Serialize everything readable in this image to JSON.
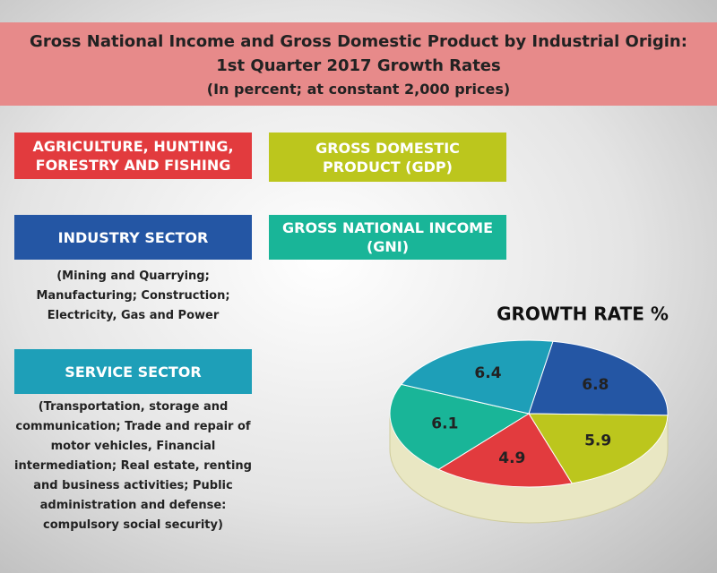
{
  "chart_data": {
    "type": "pie",
    "title": "Gross National Income and Gross Domestic Product by Industrial Origin: 1st Quarter 2017 Growth Rates",
    "subtitle": "(In percent; at constant 2,000 prices)",
    "chart_label": "GROWTH RATE %",
    "categories": [
      "INDUSTRY SECTOR",
      "GROSS DOMESTIC PRODUCT (GDP)",
      "AGRICULTURE, HUNTING, FORESTRY AND FISHING",
      "GROSS NATIONAL INCOME (GNI)",
      "SERVICE SECTOR"
    ],
    "values": [
      6.8,
      5.9,
      4.9,
      6.1,
      6.4
    ],
    "colors": [
      "#2456a4",
      "#bcc61d",
      "#e23b3e",
      "#19b598",
      "#1e9fb8"
    ],
    "category_notes": [
      "(Mining and Quarrying; Manufacturing; Construction; Electricity, Gas and Power",
      null,
      null,
      null,
      "(Transportation, storage and communication; Trade and repair of motor vehicles, Financial intermediation; Real estate, renting and business activities; Public administration and defense: compulsory social security)"
    ]
  }
}
